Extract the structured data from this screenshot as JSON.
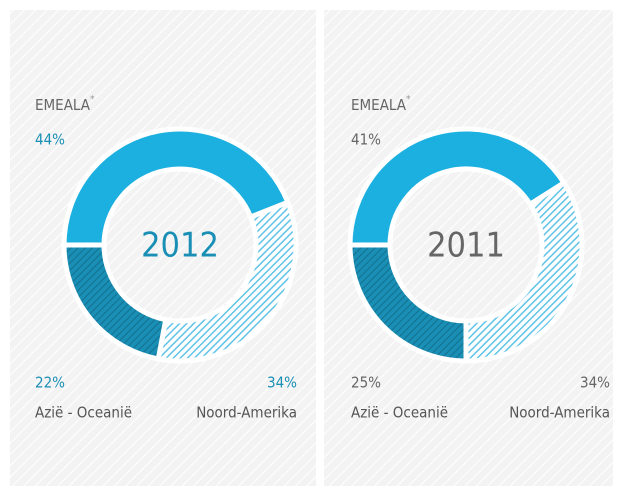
{
  "chart_data": [
    {
      "type": "pie",
      "title": "2012",
      "categories": [
        "EMEALA",
        "Azië - Oceanië",
        "Noord-Amerika"
      ],
      "footnote_mark": "*",
      "values": [
        44,
        22,
        34
      ],
      "value_labels": [
        "44%",
        "22%",
        "34%"
      ],
      "colors": [
        "#1cb0e0",
        "#1a8fb5",
        "#7fd0ec"
      ],
      "label_color": "#1a8fb5"
    },
    {
      "type": "pie",
      "title": "2011",
      "categories": [
        "EMEALA",
        "Azië - Oceanië",
        "Noord-Amerika"
      ],
      "footnote_mark": "*",
      "values": [
        41,
        25,
        34
      ],
      "value_labels": [
        "41%",
        "25%",
        "34%"
      ],
      "colors": [
        "#1cb0e0",
        "#1a8fb5",
        "#7fd0ec"
      ],
      "label_color": "#666666"
    }
  ]
}
